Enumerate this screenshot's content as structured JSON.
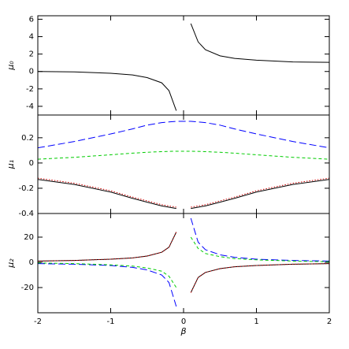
{
  "chart_data": [
    {
      "type": "line",
      "ylabel": "μ₀",
      "x": [
        -2,
        -1.5,
        -1,
        -0.7,
        -0.5,
        -0.3,
        -0.2,
        -0.1,
        0,
        0.1,
        0.2,
        0.3,
        0.5,
        0.7,
        1,
        1.5,
        2
      ],
      "xlim": [
        -2,
        2
      ],
      "xticks": [
        -2,
        -1,
        0,
        1,
        2
      ],
      "ylim": [
        -5,
        6.4
      ],
      "yticks": [
        -4,
        -2,
        0,
        2,
        4,
        6
      ],
      "series": [
        {
          "color": "#000000",
          "dash": "solid",
          "values": [
            0.0,
            -0.05,
            -0.2,
            -0.4,
            -0.7,
            -1.3,
            -2.2,
            -4.5,
            null,
            5.5,
            3.4,
            2.5,
            1.8,
            1.5,
            1.3,
            1.1,
            1.05
          ]
        }
      ]
    },
    {
      "type": "line",
      "ylabel": "μ₁",
      "x": [
        -2,
        -1.5,
        -1,
        -0.7,
        -0.5,
        -0.3,
        -0.2,
        -0.1,
        0,
        0.1,
        0.2,
        0.3,
        0.5,
        0.7,
        1,
        1.5,
        2
      ],
      "xlim": [
        -2,
        2
      ],
      "xticks": [
        -2,
        -1,
        0,
        1,
        2
      ],
      "ylim": [
        -0.4,
        0.38
      ],
      "yticks": [
        -0.4,
        -0.2,
        0,
        0.2
      ],
      "series": [
        {
          "color": "#0000ff",
          "dash": "long",
          "values": [
            0.12,
            0.17,
            0.23,
            0.27,
            0.3,
            0.32,
            0.325,
            0.33,
            0.33,
            0.33,
            0.325,
            0.32,
            0.3,
            0.27,
            0.23,
            0.17,
            0.12
          ]
        },
        {
          "color": "#00cc00",
          "dash": "short",
          "values": [
            0.03,
            0.045,
            0.065,
            0.078,
            0.085,
            0.09,
            0.092,
            0.093,
            0.093,
            0.093,
            0.092,
            0.09,
            0.085,
            0.078,
            0.065,
            0.045,
            0.03
          ]
        },
        {
          "color": "#000000",
          "dash": "solid",
          "values": [
            -0.13,
            -0.17,
            -0.23,
            -0.28,
            -0.31,
            -0.34,
            -0.35,
            -0.36,
            null,
            -0.36,
            -0.35,
            -0.34,
            -0.31,
            -0.28,
            -0.23,
            -0.17,
            -0.13
          ]
        },
        {
          "color": "#cc0000",
          "dash": "dot",
          "values": [
            -0.12,
            -0.16,
            -0.22,
            -0.27,
            -0.3,
            -0.33,
            -0.34,
            -0.35,
            null,
            -0.35,
            -0.34,
            -0.33,
            -0.3,
            -0.27,
            -0.22,
            -0.16,
            -0.12
          ]
        }
      ]
    },
    {
      "type": "line",
      "ylabel": "μ₂",
      "xlabel": "β",
      "x": [
        -2,
        -1.5,
        -1,
        -0.7,
        -0.5,
        -0.3,
        -0.2,
        -0.1,
        0,
        0.1,
        0.2,
        0.3,
        0.5,
        0.7,
        1,
        1.5,
        2
      ],
      "xlim": [
        -2,
        2
      ],
      "xticks": [
        -2,
        -1,
        0,
        1,
        2
      ],
      "ylim": [
        -40,
        38.75
      ],
      "yticks": [
        -20,
        0,
        20
      ],
      "series": [
        {
          "color": "#0000ff",
          "dash": "long",
          "values": [
            -1,
            -1.5,
            -2.5,
            -4,
            -6,
            -10,
            -16,
            -35,
            null,
            35,
            16,
            10,
            6,
            4,
            2.5,
            1.5,
            1
          ]
        },
        {
          "color": "#00cc00",
          "dash": "short",
          "values": [
            -0.5,
            -1,
            -2,
            -3,
            -4.5,
            -7,
            -11,
            -20,
            null,
            20,
            11,
            7,
            4.5,
            3,
            2,
            1,
            0.5
          ]
        },
        {
          "color": "#000000",
          "dash": "solid",
          "values": [
            1,
            1.5,
            2.5,
            3.5,
            5,
            8,
            12,
            24,
            null,
            -24,
            -12,
            -8,
            -5,
            -3.5,
            -2.5,
            -1.5,
            -1
          ]
        },
        {
          "color": "#cc0000",
          "dash": "dot",
          "values": [
            1,
            1.5,
            2.5,
            3.5,
            5,
            8,
            12,
            24,
            null,
            -24,
            -12,
            -8,
            -5,
            -3.5,
            -2.5,
            -1.5,
            -1
          ]
        }
      ]
    }
  ]
}
